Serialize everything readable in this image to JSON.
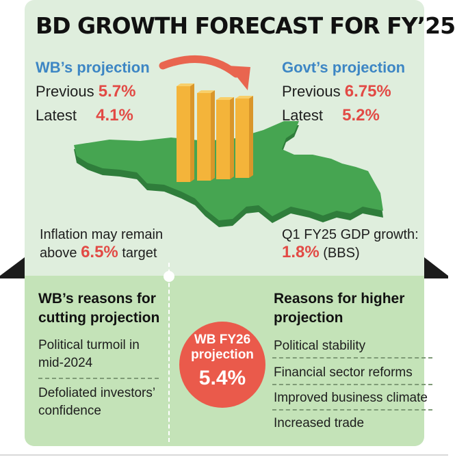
{
  "title": "BD GROWTH FORECAST FOR FY’25",
  "wb": {
    "heading": "WB’s projection",
    "previous_label": "Previous",
    "previous_value": "5.7%",
    "latest_label": "Latest",
    "latest_value": "4.1%"
  },
  "govt": {
    "heading": "Govt’s projection",
    "previous_label": "Previous",
    "previous_value": "6.75%",
    "latest_label": "Latest",
    "latest_value": "5.2%"
  },
  "inflation": {
    "line1": "Inflation may remain",
    "prefix": "above",
    "value": "6.5%",
    "suffix": "target"
  },
  "gdp": {
    "line1": "Q1 FY25 GDP growth:",
    "value": "1.8%",
    "source": "(BBS)"
  },
  "wb_reasons": {
    "heading_line1": "WB’s reasons for",
    "heading_line2": "cutting projection",
    "items": [
      {
        "line1": "Political turmoil in",
        "line2": "mid-2024"
      },
      {
        "line1": "Defoliated investors’",
        "line2": "confidence"
      }
    ]
  },
  "higher_reasons": {
    "heading_line1": "Reasons for higher",
    "heading_line2": "projection",
    "items": [
      "Political stability",
      "Financial sector reforms",
      "Improved business climate",
      "Increased trade"
    ]
  },
  "badge": {
    "line1": "WB FY26",
    "line2": "projection",
    "value": "5.4%"
  },
  "colors": {
    "card_bg": "#dfeedd",
    "panel_bg": "#c4e3b8",
    "map_green": "#3f9e4b",
    "bar_orange": "#f4b43a",
    "arrow_red": "#e9654f",
    "accent_red": "#e24a45",
    "heading_blue": "#3d86c4"
  },
  "icons": {
    "map": "bangladesh-map-illustration",
    "bars": "declining-bars-illustration",
    "arrow": "curved-arrow-icon"
  }
}
